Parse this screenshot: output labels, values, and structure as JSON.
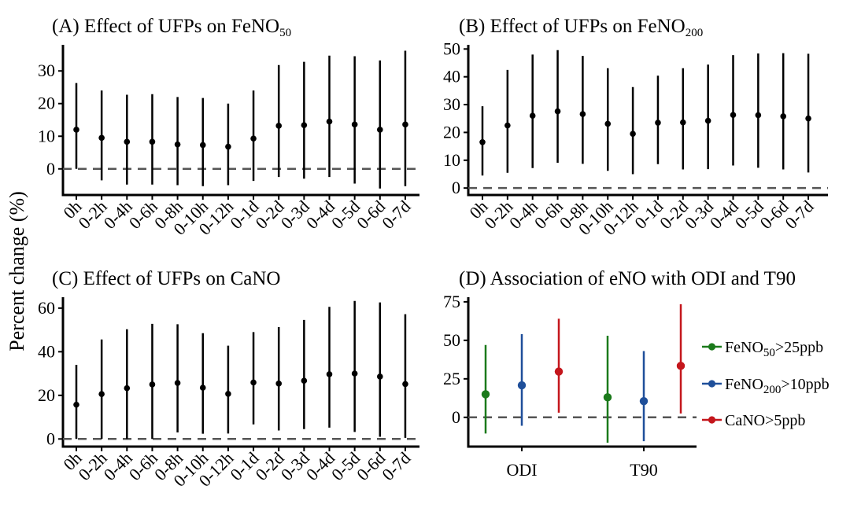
{
  "y_axis_label": "Percent change (%)",
  "chart_data": [
    {
      "type": "errorbar",
      "title": "(A) Effect of UFPs on FeNO",
      "title_subscript": "50",
      "categories": [
        "0h",
        "0-2h",
        "0-4h",
        "0-6h",
        "0-8h",
        "0-10h",
        "0-12h",
        "0-1d",
        "0-2d",
        "0-3d",
        "0-4d",
        "0-5d",
        "0-6d",
        "0-7d"
      ],
      "estimate": [
        12.0,
        9.5,
        8.3,
        8.3,
        7.5,
        7.3,
        6.8,
        9.3,
        13.2,
        13.4,
        14.5,
        13.6,
        12.0,
        13.6
      ],
      "lower": [
        0.0,
        -3.5,
        -4.8,
        -4.8,
        -5.0,
        -5.3,
        -5.0,
        -3.7,
        -2.5,
        -3.0,
        -2.5,
        -4.5,
        -6.0,
        -5.3
      ],
      "upper": [
        26.3,
        24.0,
        22.7,
        22.9,
        22.0,
        21.7,
        20.0,
        24.0,
        31.8,
        32.8,
        34.7,
        34.5,
        33.2,
        36.2
      ],
      "yticks": [
        0,
        10,
        20,
        30
      ],
      "ylim": [
        -8,
        38
      ],
      "reference_line": 0
    },
    {
      "type": "errorbar",
      "title": "(B) Effect of UFPs on FeNO",
      "title_subscript": "200",
      "categories": [
        "0h",
        "0-2h",
        "0-4h",
        "0-6h",
        "0-8h",
        "0-10h",
        "0-12h",
        "0-1d",
        "0-2d",
        "0-3d",
        "0-4d",
        "0-5d",
        "0-6d",
        "0-7d"
      ],
      "estimate": [
        16.5,
        22.5,
        26.0,
        27.6,
        26.6,
        23.1,
        19.5,
        23.5,
        23.6,
        24.2,
        26.3,
        26.2,
        25.8,
        25.0
      ],
      "lower": [
        4.5,
        5.5,
        7.2,
        9.1,
        8.7,
        6.2,
        5.0,
        8.6,
        6.7,
        6.8,
        8.1,
        7.3,
        6.7,
        5.6
      ],
      "upper": [
        29.4,
        42.5,
        48.0,
        49.6,
        47.5,
        43.1,
        36.3,
        40.4,
        43.1,
        44.4,
        47.8,
        48.4,
        48.5,
        48.3
      ],
      "yticks": [
        0,
        10,
        20,
        30,
        40,
        50
      ],
      "ylim": [
        -2.5,
        51.5
      ],
      "reference_line": 0
    },
    {
      "type": "errorbar",
      "title": "(C) Effect of UFPs on CaNO",
      "title_subscript": "",
      "categories": [
        "0h",
        "0-2h",
        "0-4h",
        "0-6h",
        "0-8h",
        "0-10h",
        "0-12h",
        "0-1d",
        "0-2d",
        "0-3d",
        "0-4d",
        "0-5d",
        "0-6d",
        "0-7d"
      ],
      "estimate": [
        15.7,
        20.6,
        23.3,
        25.0,
        25.7,
        23.5,
        20.7,
        25.9,
        25.4,
        26.7,
        29.7,
        30.0,
        28.6,
        25.2
      ],
      "lower": [
        0.0,
        0.0,
        0.0,
        0.0,
        3.0,
        2.4,
        2.5,
        6.7,
        3.9,
        4.5,
        5.2,
        3.2,
        1.0,
        0.5
      ],
      "upper": [
        34.0,
        45.6,
        50.3,
        52.8,
        52.6,
        48.5,
        42.8,
        49.0,
        51.3,
        54.6,
        60.6,
        63.3,
        62.6,
        57.2
      ],
      "yticks": [
        0,
        20,
        40,
        60
      ],
      "ylim": [
        -3.5,
        65
      ],
      "reference_line": 0
    },
    {
      "type": "errorbar",
      "title": "(D) Association of eNO with ODI and T90",
      "categories": [
        "ODI",
        "T90"
      ],
      "series": [
        {
          "name": "FeNO",
          "subscript": "50",
          "suffix": ">25ppb",
          "color": "#1b7a1b",
          "estimate": [
            15.0,
            13.0
          ],
          "lower": [
            -10.5,
            -16.5
          ],
          "upper": [
            47.0,
            53.0
          ]
        },
        {
          "name": "FeNO",
          "subscript": "200",
          "suffix": ">10ppb",
          "color": "#1f4f9a",
          "estimate": [
            20.8,
            10.5
          ],
          "lower": [
            -5.5,
            -15.5
          ],
          "upper": [
            54.0,
            43.0
          ]
        },
        {
          "name": "CaNO",
          "subscript": "",
          "suffix": ">5ppb",
          "color": "#c4161c",
          "estimate": [
            29.7,
            33.4
          ],
          "lower": [
            3.0,
            2.5
          ],
          "upper": [
            64.0,
            73.5
          ]
        }
      ],
      "yticks": [
        0,
        25,
        50,
        75
      ],
      "ylim": [
        -19,
        78
      ],
      "reference_line": 0
    }
  ]
}
